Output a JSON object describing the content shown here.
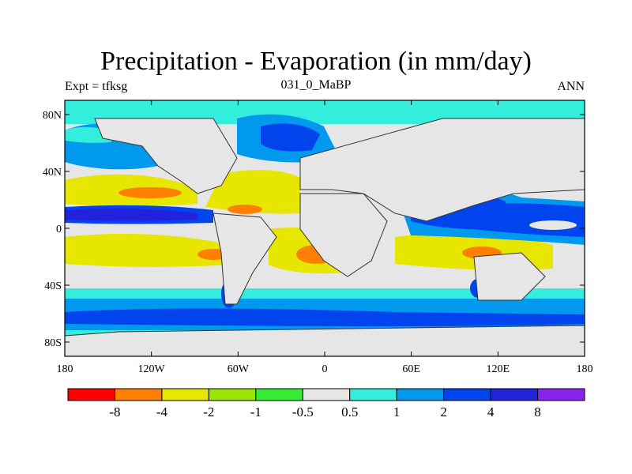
{
  "title": "Precipitation - Evaporation (in mm/day)",
  "experiment_label": "Expt = tfksg",
  "subtitle": "031_0_MaBP",
  "period": "ANN",
  "axes": {
    "y_ticks": [
      {
        "lat": 80,
        "label": "80N"
      },
      {
        "lat": 40,
        "label": "40N"
      },
      {
        "lat": 0,
        "label": "0"
      },
      {
        "lat": -40,
        "label": "40S"
      },
      {
        "lat": -80,
        "label": "80S"
      }
    ],
    "x_ticks": [
      {
        "lon": -180,
        "label": "180"
      },
      {
        "lon": -120,
        "label": "120W"
      },
      {
        "lon": -60,
        "label": "60W"
      },
      {
        "lon": 0,
        "label": "0"
      },
      {
        "lon": 60,
        "label": "60E"
      },
      {
        "lon": 120,
        "label": "120E"
      },
      {
        "lon": 180,
        "label": "180"
      }
    ]
  },
  "colorbar": {
    "colors": [
      "#ff0000",
      "#ff8000",
      "#e6e600",
      "#99e600",
      "#33ee33",
      "#e6e6e6",
      "#33eedd",
      "#0099ee",
      "#0044ee",
      "#2222dd",
      "#8822ee"
    ],
    "labels": [
      "-8",
      "-4",
      "-2",
      "-1",
      "-0.5",
      "0.5",
      "1",
      "2",
      "4",
      "8"
    ]
  }
}
